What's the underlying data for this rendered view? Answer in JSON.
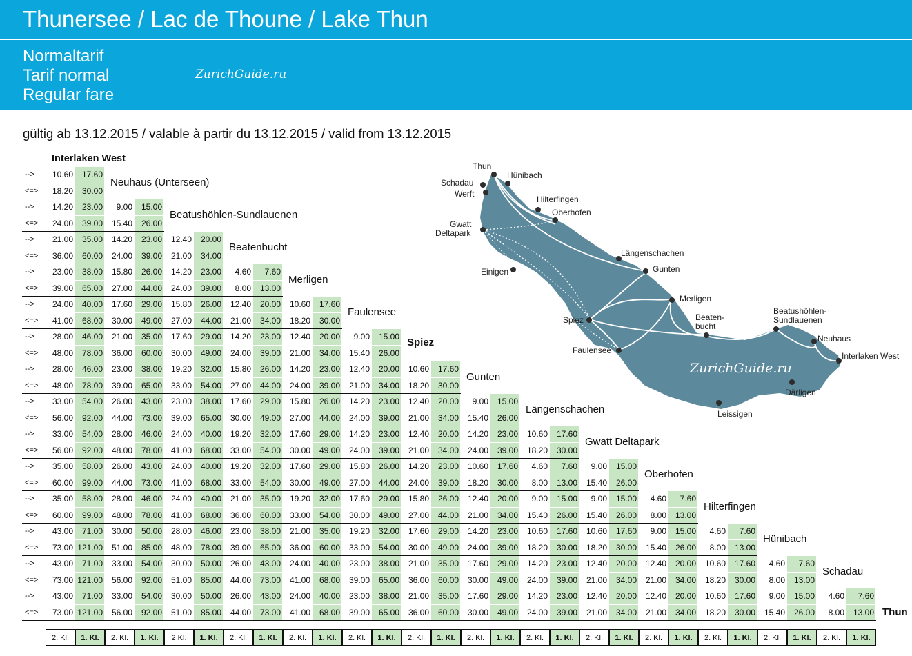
{
  "header": {
    "title": "Thunersee / Lac de Thoune / Lake Thun",
    "fare_de": "Normaltarif",
    "fare_fr": "Tarif normal",
    "fare_en": "Regular fare",
    "watermark": "ZurichGuide.ru"
  },
  "validity": "gültig ab 13.12.2015 / valable à partir du 13.12.2015 / valid from 13.12.2015",
  "directions": {
    "single": "-->",
    "return": "<=>"
  },
  "first_station": "Interlaken West",
  "stations": [
    "Neuhaus (Unterseen)",
    "Beatushöhlen-Sundlauenen",
    "Beatenbucht",
    "Merligen",
    "Faulensee",
    "Spiez",
    "Gunten",
    "Längenschachen",
    "Gwatt Deltapark",
    "Oberhofen",
    "Hilterfingen",
    "Hünibach",
    "Schadau",
    "Thun"
  ],
  "fare_rows": [
    {
      "single": [
        "10.60",
        "17.60"
      ],
      "return": [
        "18.20",
        "30.00"
      ]
    },
    {
      "single": [
        "14.20",
        "23.00",
        "9.00",
        "15.00"
      ],
      "return": [
        "24.00",
        "39.00",
        "15.40",
        "26.00"
      ]
    },
    {
      "single": [
        "21.00",
        "35.00",
        "14.20",
        "23.00",
        "12.40",
        "20.00"
      ],
      "return": [
        "36.00",
        "60.00",
        "24.00",
        "39.00",
        "21.00",
        "34.00"
      ]
    },
    {
      "single": [
        "23.00",
        "38.00",
        "15.80",
        "26.00",
        "14.20",
        "23.00",
        "4.60",
        "7.60"
      ],
      "return": [
        "39.00",
        "65.00",
        "27.00",
        "44.00",
        "24.00",
        "39.00",
        "8.00",
        "13.00"
      ]
    },
    {
      "single": [
        "24.00",
        "40.00",
        "17.60",
        "29.00",
        "15.80",
        "26.00",
        "12.40",
        "20.00",
        "10.60",
        "17.60"
      ],
      "return": [
        "41.00",
        "68.00",
        "30.00",
        "49.00",
        "27.00",
        "44.00",
        "21.00",
        "34.00",
        "18.20",
        "30.00"
      ]
    },
    {
      "single": [
        "28.00",
        "46.00",
        "21.00",
        "35.00",
        "17.60",
        "29.00",
        "14.20",
        "23.00",
        "12.40",
        "20.00",
        "9.00",
        "15.00"
      ],
      "return": [
        "48.00",
        "78.00",
        "36.00",
        "60.00",
        "30.00",
        "49.00",
        "24.00",
        "39.00",
        "21.00",
        "34.00",
        "15.40",
        "26.00"
      ]
    },
    {
      "single": [
        "28.00",
        "46.00",
        "23.00",
        "38.00",
        "19.20",
        "32.00",
        "15.80",
        "26.00",
        "14.20",
        "23.00",
        "12.40",
        "20.00",
        "10.60",
        "17.60"
      ],
      "return": [
        "48.00",
        "78.00",
        "39.00",
        "65.00",
        "33.00",
        "54.00",
        "27.00",
        "44.00",
        "24.00",
        "39.00",
        "21.00",
        "34.00",
        "18.20",
        "30.00"
      ]
    },
    {
      "single": [
        "33.00",
        "54.00",
        "26.00",
        "43.00",
        "23.00",
        "38.00",
        "17.60",
        "29.00",
        "15.80",
        "26.00",
        "14.20",
        "23.00",
        "12.40",
        "20.00",
        "9.00",
        "15.00"
      ],
      "return": [
        "56.00",
        "92.00",
        "44.00",
        "73.00",
        "39.00",
        "65.00",
        "30.00",
        "49.00",
        "27.00",
        "44.00",
        "24.00",
        "39.00",
        "21.00",
        "34.00",
        "15.40",
        "26.00"
      ]
    },
    {
      "single": [
        "33.00",
        "54.00",
        "28.00",
        "46.00",
        "24.00",
        "40.00",
        "19.20",
        "32.00",
        "17.60",
        "29.00",
        "14.20",
        "23.00",
        "12.40",
        "20.00",
        "14.20",
        "23.00",
        "10.60",
        "17.60"
      ],
      "return": [
        "56.00",
        "92.00",
        "48.00",
        "78.00",
        "41.00",
        "68.00",
        "33.00",
        "54.00",
        "30.00",
        "49.00",
        "24.00",
        "39.00",
        "21.00",
        "34.00",
        "24.00",
        "39.00",
        "18.20",
        "30.00"
      ]
    },
    {
      "single": [
        "35.00",
        "58.00",
        "26.00",
        "43.00",
        "24.00",
        "40.00",
        "19.20",
        "32.00",
        "17.60",
        "29.00",
        "15.80",
        "26.00",
        "14.20",
        "23.00",
        "10.60",
        "17.60",
        "4.60",
        "7.60",
        "9.00",
        "15.00"
      ],
      "return": [
        "60.00",
        "99.00",
        "44.00",
        "73.00",
        "41.00",
        "68.00",
        "33.00",
        "54.00",
        "30.00",
        "49.00",
        "27.00",
        "44.00",
        "24.00",
        "39.00",
        "18.20",
        "30.00",
        "8.00",
        "13.00",
        "15.40",
        "26.00"
      ]
    },
    {
      "single": [
        "35.00",
        "58.00",
        "28.00",
        "46.00",
        "24.00",
        "40.00",
        "21.00",
        "35.00",
        "19.20",
        "32.00",
        "17.60",
        "29.00",
        "15.80",
        "26.00",
        "12.40",
        "20.00",
        "9.00",
        "15.00",
        "9.00",
        "15.00",
        "4.60",
        "7.60"
      ],
      "return": [
        "60.00",
        "99.00",
        "48.00",
        "78.00",
        "41.00",
        "68.00",
        "36.00",
        "60.00",
        "33.00",
        "54.00",
        "30.00",
        "49.00",
        "27.00",
        "44.00",
        "21.00",
        "34.00",
        "15.40",
        "26.00",
        "15.40",
        "26.00",
        "8.00",
        "13.00"
      ]
    },
    {
      "single": [
        "43.00",
        "71.00",
        "30.00",
        "50.00",
        "28.00",
        "46.00",
        "23.00",
        "38.00",
        "21.00",
        "35.00",
        "19.20",
        "32.00",
        "17.60",
        "29.00",
        "14.20",
        "23.00",
        "10.60",
        "17.60",
        "10.60",
        "17.60",
        "9.00",
        "15.00",
        "4.60",
        "7.60"
      ],
      "return": [
        "73.00",
        "121.00",
        "51.00",
        "85.00",
        "48.00",
        "78.00",
        "39.00",
        "65.00",
        "36.00",
        "60.00",
        "33.00",
        "54.00",
        "30.00",
        "49.00",
        "24.00",
        "39.00",
        "18.20",
        "30.00",
        "18.20",
        "30.00",
        "15.40",
        "26.00",
        "8.00",
        "13.00"
      ]
    },
    {
      "single": [
        "43.00",
        "71.00",
        "33.00",
        "54.00",
        "30.00",
        "50.00",
        "26.00",
        "43.00",
        "24.00",
        "40.00",
        "23.00",
        "38.00",
        "21.00",
        "35.00",
        "17.60",
        "29.00",
        "14.20",
        "23.00",
        "12.40",
        "20.00",
        "12.40",
        "20.00",
        "10.60",
        "17.60",
        "4.60",
        "7.60"
      ],
      "return": [
        "73.00",
        "121.00",
        "56.00",
        "92.00",
        "51.00",
        "85.00",
        "44.00",
        "73.00",
        "41.00",
        "68.00",
        "39.00",
        "65.00",
        "36.00",
        "60.00",
        "30.00",
        "49.00",
        "24.00",
        "39.00",
        "21.00",
        "34.00",
        "21.00",
        "34.00",
        "18.20",
        "30.00",
        "8.00",
        "13.00"
      ]
    },
    {
      "single": [
        "43.00",
        "71.00",
        "33.00",
        "54.00",
        "30.00",
        "50.00",
        "26.00",
        "43.00",
        "24.00",
        "40.00",
        "23.00",
        "38.00",
        "21.00",
        "35.00",
        "17.60",
        "29.00",
        "14.20",
        "23.00",
        "12.40",
        "20.00",
        "12.40",
        "20.00",
        "10.60",
        "17.60",
        "9.00",
        "15.00",
        "4.60",
        "7.60"
      ],
      "return": [
        "73.00",
        "121.00",
        "56.00",
        "92.00",
        "51.00",
        "85.00",
        "44.00",
        "73.00",
        "41.00",
        "68.00",
        "39.00",
        "65.00",
        "36.00",
        "60.00",
        "30.00",
        "49.00",
        "24.00",
        "39.00",
        "21.00",
        "34.00",
        "21.00",
        "34.00",
        "18.20",
        "30.00",
        "15.40",
        "26.00",
        "8.00",
        "13.00"
      ]
    }
  ],
  "footer": [
    {
      "label": "2. Kl."
    },
    {
      "label": "1. Kl."
    },
    {
      "label": "2. Kl."
    },
    {
      "label": "1. Kl."
    },
    {
      "label": "2 Kl."
    },
    {
      "label": "1. Kl."
    },
    {
      "label": "2. Kl."
    },
    {
      "label": "1. Kl."
    },
    {
      "label": "2. Kl."
    },
    {
      "label": "1. Kl."
    },
    {
      "label": "2. Kl."
    },
    {
      "label": "1. Kl."
    },
    {
      "label": "2. Kl."
    },
    {
      "label": "1. Kl."
    },
    {
      "label": "2. Kl."
    },
    {
      "label": "1. Kl."
    },
    {
      "label": "2. Kl."
    },
    {
      "label": "1. Kl."
    },
    {
      "label": "2. Kl."
    },
    {
      "label": "1. Kl."
    },
    {
      "label": "2. Kl."
    },
    {
      "label": "1. Kl."
    },
    {
      "label": "2. Kl."
    },
    {
      "label": "1. Kl."
    },
    {
      "label": "2. Kl."
    },
    {
      "label": "1. Kl."
    },
    {
      "label": "2. Kl."
    },
    {
      "label": "1. Kl."
    }
  ],
  "map": {
    "lake_color": "#4f7f94",
    "labels": {
      "thun": "Thun",
      "huenibach": "Hünibach",
      "schadau": "Schadau",
      "werft": "Werft",
      "hilterfingen": "Hilterfingen",
      "oberhofen": "Oberhofen",
      "gwatt1": "Gwatt",
      "gwatt2": "Deltapark",
      "laengenschachen": "Längenschachen",
      "gunten": "Gunten",
      "einigen": "Einigen",
      "merligen": "Merligen",
      "spiez": "Spiez",
      "beatenbucht1": "Beaten-",
      "beatenbucht2": "bucht",
      "beatus1": "Beatushöhlen-",
      "beatus2": "Sundlauenen",
      "neuhaus": "Neuhaus",
      "faulensee": "Faulensee",
      "interlaken": "Interlaken West",
      "daerligen": "Därligen",
      "leissigen": "Leissigen"
    },
    "watermark": "ZurichGuide.ru"
  }
}
